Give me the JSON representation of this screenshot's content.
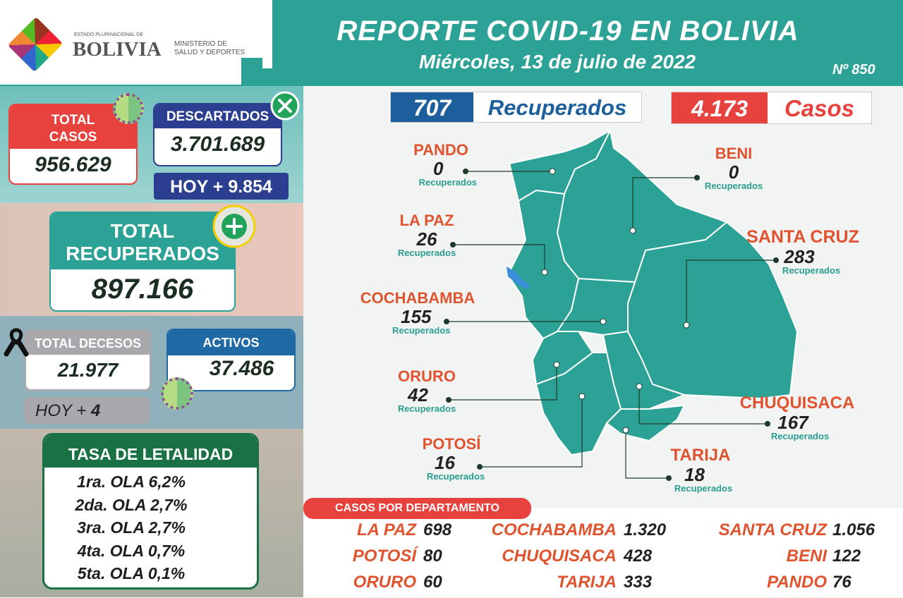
{
  "header": {
    "logo_small": "ESTADO PLURINACIONAL DE",
    "logo_big": "BOLIVIA",
    "ministry_line1": "MINISTERIO DE",
    "ministry_line2": "SALUD Y DEPORTES",
    "title": "REPORTE COVID-19 EN BOLIVIA",
    "date": "Miércoles, 13 de julio de 2022",
    "number": "Nº 850"
  },
  "totals": {
    "casos": {
      "label1": "TOTAL",
      "label2": "CASOS",
      "value": "956.629"
    },
    "descartados": {
      "label": "DESCARTADOS",
      "value": "3.701.689",
      "hoy": "HOY + 9.854"
    },
    "recuperados": {
      "label1": "TOTAL",
      "label2": "RECUPERADOS",
      "value": "897.166"
    },
    "decesos": {
      "label": "TOTAL DECESOS",
      "value": "21.977",
      "hoy_label": "HOY +",
      "hoy_value": "4"
    },
    "activos": {
      "label": "ACTIVOS",
      "value": "37.486"
    }
  },
  "letalidad": {
    "title": "TASA DE LETALIDAD",
    "rows": [
      "1ra. OLA 6,2%",
      "2da. OLA 2,7%",
      "3ra. OLA 2,7%",
      "4ta. OLA 0,7%",
      "5ta. OLA 0,1%"
    ]
  },
  "daily": {
    "recuperados_value": "707",
    "recuperados_label": "Recuperados",
    "casos_value": "4.173",
    "casos_label": "Casos"
  },
  "map": {
    "sublabel": "Recuperados",
    "departments": [
      {
        "name": "PANDO",
        "value": "0"
      },
      {
        "name": "BENI",
        "value": "0"
      },
      {
        "name": "LA PAZ",
        "value": "26"
      },
      {
        "name": "SANTA CRUZ",
        "value": "283"
      },
      {
        "name": "COCHABAMBA",
        "value": "155"
      },
      {
        "name": "ORURO",
        "value": "42"
      },
      {
        "name": "CHUQUISACA",
        "value": "167"
      },
      {
        "name": "POTOSÍ",
        "value": "16"
      },
      {
        "name": "TARIJA",
        "value": "18"
      }
    ]
  },
  "casos_departamento": {
    "title": "CASOS POR DEPARTAMENTO",
    "rows": [
      {
        "name": "LA PAZ",
        "value": "698"
      },
      {
        "name": "COCHABAMBA",
        "value": "1.320"
      },
      {
        "name": "SANTA CRUZ",
        "value": "1.056"
      },
      {
        "name": "POTOSÍ",
        "value": "80"
      },
      {
        "name": "CHUQUISACA",
        "value": "428"
      },
      {
        "name": "BENI",
        "value": "122"
      },
      {
        "name": "ORURO",
        "value": "60"
      },
      {
        "name": "TARIJA",
        "value": "333"
      },
      {
        "name": "PANDO",
        "value": "76"
      }
    ]
  },
  "colors": {
    "teal": "#2ba295",
    "red": "#e8423f",
    "navy": "#2c3e8f",
    "blue": "#1f6aa5",
    "green": "#1a7244",
    "orange": "#e0532f"
  }
}
